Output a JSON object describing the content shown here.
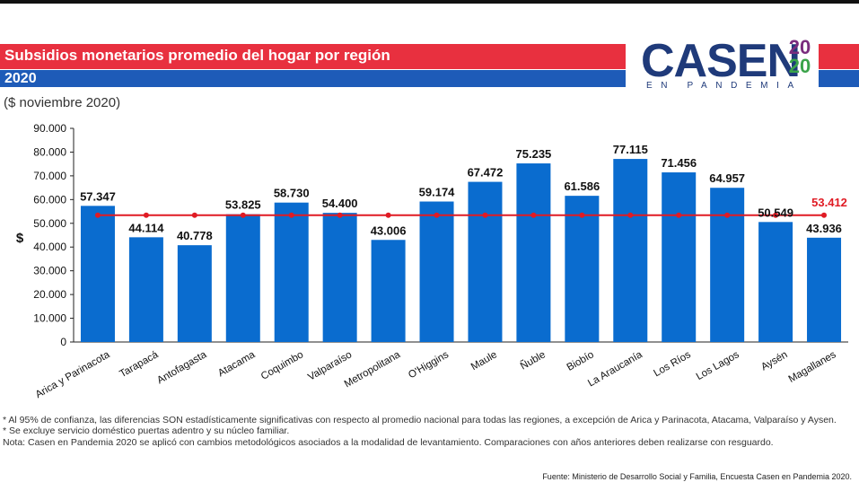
{
  "header": {
    "title": "Subsidios monetarios promedio del hogar por región",
    "year": "2020",
    "units": "($ noviembre 2020)"
  },
  "logo": {
    "main": "CASEN",
    "year_top": "20",
    "year_bottom": "20",
    "sub": "EN PANDEMIA"
  },
  "colors": {
    "bar": "#0a6ccf",
    "national_line": "#e01b24",
    "title_red": "#e8303f",
    "title_blue": "#1e5bb8"
  },
  "chart_data": {
    "type": "bar",
    "title": "Subsidios monetarios promedio del hogar por región",
    "ylabel": "$",
    "ylim": [
      0,
      90000
    ],
    "yticks": [
      "0",
      "10.000",
      "20.000",
      "30.000",
      "40.000",
      "50.000",
      "60.000",
      "70.000",
      "80.000",
      "90.000"
    ],
    "categories": [
      "Arica y Parinacota",
      "Tarapacá",
      "Antofagasta",
      "Atacama",
      "Coquimbo",
      "Valparaíso",
      "Metropolitana",
      "O'Higgins",
      "Maule",
      "Ñuble",
      "Biobío",
      "La Araucanía",
      "Los Ríos",
      "Los Lagos",
      "Aysén",
      "Magallanes"
    ],
    "values": [
      57347,
      44114,
      40778,
      53825,
      58730,
      54400,
      43006,
      59174,
      67472,
      75235,
      61586,
      77115,
      71456,
      64957,
      50549,
      43936
    ],
    "value_labels": [
      "57.347",
      "44.114",
      "40.778",
      "53.825",
      "58.730",
      "54.400",
      "43.006",
      "59.174",
      "67.472",
      "75.235",
      "61.586",
      "77.115",
      "71.456",
      "64.957",
      "50.549",
      "43.936"
    ],
    "national_average": 53412,
    "national_average_label": "53.412",
    "grid": false
  },
  "footer": {
    "notes": [
      "* Al 95% de confianza, las diferencias SON estadísticamente significativas con respecto al promedio nacional para todas las regiones, a excepción de Arica y Parinacota, Atacama, Valparaíso y Aysen.",
      "* Se excluye servicio doméstico puertas adentro y su núcleo familiar.",
      "Nota: Casen en Pandemia 2020 se aplicó con cambios metodológicos asociados a la modalidad de levantamiento. Comparaciones con años anteriores deben realizarse con resguardo."
    ],
    "source": "Fuente: Ministerio de Desarrollo Social y Familia, Encuesta Casen en Pandemia 2020."
  }
}
